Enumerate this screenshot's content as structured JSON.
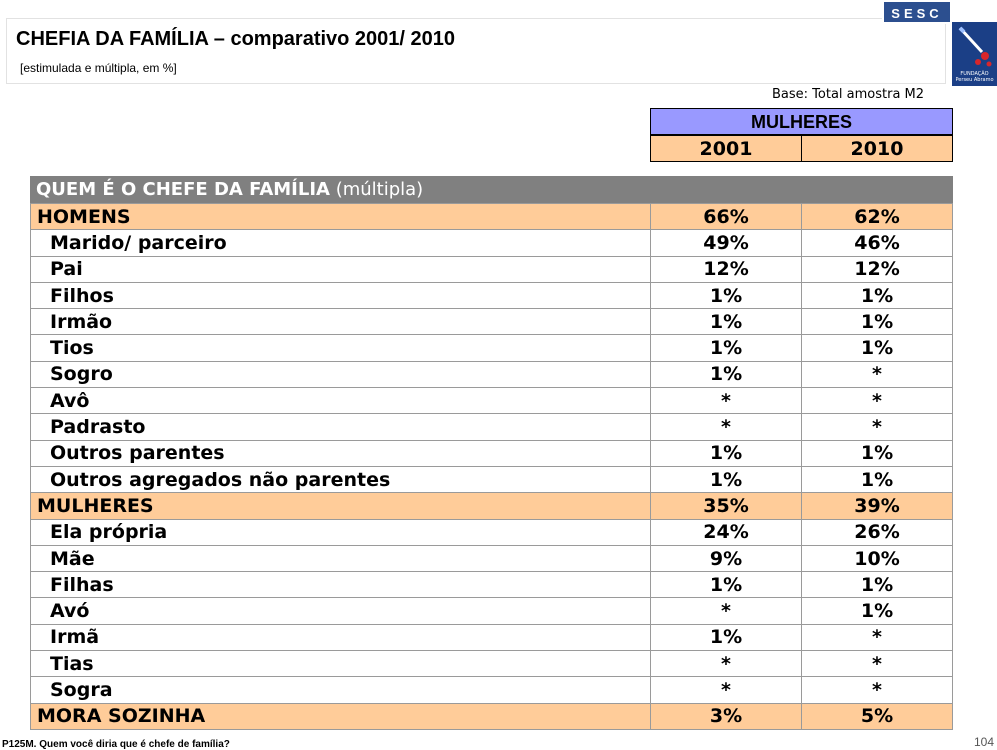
{
  "header": {
    "title": "CHEFIA DA FAMÍLIA – comparativo 2001/ 2010",
    "subtitle": "[estimulada e múltipla, em %]",
    "logo_sesc": "SESC",
    "logo_fundacao": "FUNDAÇÃO Perseu Abramo",
    "base": "Base: Total amostra M2"
  },
  "table": {
    "group_header": "MULHERES",
    "years": [
      "2001",
      "2010"
    ],
    "section_title": "QUEM É O CHEFE DA FAMÍLIA",
    "section_note": "(múltipla)",
    "rows": [
      {
        "label": "HOMENS",
        "v2001": "66%",
        "v2010": "62%",
        "group": true
      },
      {
        "label": "Marido/ parceiro",
        "v2001": "49%",
        "v2010": "46%",
        "group": false
      },
      {
        "label": "Pai",
        "v2001": "12%",
        "v2010": "12%",
        "group": false
      },
      {
        "label": "Filhos",
        "v2001": "1%",
        "v2010": "1%",
        "group": false
      },
      {
        "label": "Irmão",
        "v2001": "1%",
        "v2010": "1%",
        "group": false
      },
      {
        "label": "Tios",
        "v2001": "1%",
        "v2010": "1%",
        "group": false
      },
      {
        "label": "Sogro",
        "v2001": "1%",
        "v2010": "*",
        "group": false
      },
      {
        "label": "Avô",
        "v2001": "*",
        "v2010": "*",
        "group": false
      },
      {
        "label": "Padrasto",
        "v2001": "*",
        "v2010": "*",
        "group": false
      },
      {
        "label": "Outros parentes",
        "v2001": "1%",
        "v2010": "1%",
        "group": false
      },
      {
        "label": "Outros agregados não parentes",
        "v2001": "1%",
        "v2010": "1%",
        "group": false
      },
      {
        "label": "MULHERES",
        "v2001": "35%",
        "v2010": "39%",
        "group": true
      },
      {
        "label": "Ela própria",
        "v2001": "24%",
        "v2010": "26%",
        "group": false
      },
      {
        "label": "Mãe",
        "v2001": "9%",
        "v2010": "10%",
        "group": false
      },
      {
        "label": "Filhas",
        "v2001": "1%",
        "v2010": "1%",
        "group": false
      },
      {
        "label": "Avó",
        "v2001": "*",
        "v2010": "1%",
        "group": false
      },
      {
        "label": "Irmã",
        "v2001": "1%",
        "v2010": "*",
        "group": false
      },
      {
        "label": "Tias",
        "v2001": "*",
        "v2010": "*",
        "group": false
      },
      {
        "label": "Sogra",
        "v2001": "*",
        "v2010": "*",
        "group": false
      },
      {
        "label": "MORA SOZINHA",
        "v2001": "3%",
        "v2010": "5%",
        "group": true
      }
    ]
  },
  "footer": {
    "question": "P125M. Quem você diria que é chefe de família?",
    "page": "104"
  },
  "colors": {
    "group_row": "#ffcc99",
    "header_purple": "#9999ff",
    "section_gray": "#808080",
    "logo_blue": "#2c4f8f"
  }
}
